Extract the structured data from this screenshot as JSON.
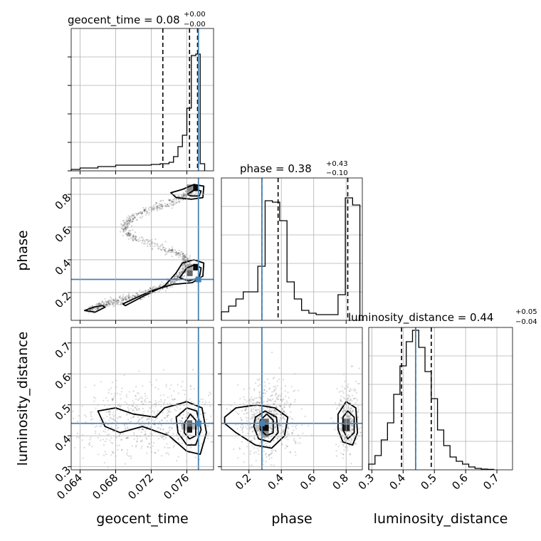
{
  "chart_data": {
    "type": "corner",
    "parameters": [
      "geocent_time",
      "phase",
      "luminosity_distance"
    ],
    "truth_color": "#4682b4",
    "grid": true,
    "marginals": [
      {
        "parameter": "geocent_time",
        "title_text": "geocent_time = 0.08",
        "title_plus": "+0.00",
        "title_minus": "−0.00",
        "quantiles": [
          0.0733,
          0.0763,
          0.0772
        ],
        "truth": 0.0773,
        "xlim": [
          0.063,
          0.079
        ],
        "ylim": [
          0,
          1
        ],
        "bin_edges": [
          0.063,
          0.064,
          0.065,
          0.066,
          0.067,
          0.068,
          0.069,
          0.07,
          0.071,
          0.072,
          0.073,
          0.074,
          0.0745,
          0.075,
          0.0755,
          0.076,
          0.0765,
          0.077,
          0.0775,
          0.078
        ],
        "counts": [
          0.01,
          0.02,
          0.02,
          0.03,
          0.03,
          0.04,
          0.04,
          0.04,
          0.04,
          0.045,
          0.05,
          0.06,
          0.1,
          0.17,
          0.25,
          0.44,
          0.81,
          0.82,
          0.05
        ],
        "y_ticks": [
          0.0,
          0.2,
          0.4,
          0.6,
          0.8
        ]
      },
      {
        "parameter": "phase",
        "title_text": "phase = 0.38",
        "title_plus": "+0.43",
        "title_minus": "−0.10",
        "quantiles": [
          0.28,
          0.38,
          0.81
        ],
        "truth": 0.28,
        "xlim": [
          0.03,
          0.9
        ],
        "ylim": [
          0,
          1
        ],
        "bin_edges": [
          0.03,
          0.075,
          0.12,
          0.165,
          0.21,
          0.255,
          0.3,
          0.345,
          0.39,
          0.435,
          0.48,
          0.525,
          0.57,
          0.615,
          0.66,
          0.705,
          0.75,
          0.795,
          0.84,
          0.885
        ],
        "counts": [
          0.06,
          0.1,
          0.15,
          0.2,
          0.2,
          0.38,
          0.84,
          0.83,
          0.7,
          0.27,
          0.15,
          0.07,
          0.05,
          0.04,
          0.04,
          0.04,
          0.18,
          0.86,
          0.81
        ],
        "x_ticks": [
          "0.2",
          "0.4",
          "0.6",
          "0.8"
        ],
        "x_tick_values": [
          0.2,
          0.4,
          0.6,
          0.8
        ]
      },
      {
        "parameter": "luminosity_distance",
        "title_text": "luminosity_distance = 0.44",
        "title_plus": "+0.05",
        "title_minus": "−0.04",
        "quantiles": [
          0.395,
          0.44,
          0.49
        ],
        "truth": 0.44,
        "xlim": [
          0.29,
          0.75
        ],
        "ylim": [
          0,
          1
        ],
        "bin_edges": [
          0.29,
          0.31,
          0.33,
          0.35,
          0.37,
          0.39,
          0.41,
          0.43,
          0.45,
          0.47,
          0.49,
          0.51,
          0.53,
          0.55,
          0.57,
          0.59,
          0.61,
          0.63,
          0.65,
          0.67,
          0.69
        ],
        "counts": [
          0.04,
          0.1,
          0.21,
          0.33,
          0.53,
          0.73,
          0.9,
          0.98,
          0.86,
          0.69,
          0.5,
          0.28,
          0.17,
          0.09,
          0.06,
          0.04,
          0.02,
          0.01,
          0.005,
          0.003
        ],
        "x_ticks": [
          "0.3",
          "0.4",
          "0.5",
          "0.6",
          "0.7"
        ],
        "x_tick_values": [
          0.3,
          0.4,
          0.5,
          0.6,
          0.7
        ]
      }
    ],
    "axes": {
      "geocent_time": {
        "range": [
          0.063,
          0.079
        ],
        "ticks": [
          "0.064",
          "0.068",
          "0.072",
          "0.076"
        ],
        "tick_values": [
          0.064,
          0.068,
          0.072,
          0.076
        ],
        "label": "geocent_time"
      },
      "phase": {
        "range": [
          0.03,
          0.9
        ],
        "ticks": [
          "0.2",
          "0.4",
          "0.6",
          "0.8"
        ],
        "tick_values": [
          0.2,
          0.4,
          0.6,
          0.8
        ],
        "label": "phase"
      },
      "luminosity_distance": {
        "range": [
          0.29,
          0.75
        ],
        "ticks": [
          "0.3",
          "0.4",
          "0.5",
          "0.6",
          "0.7"
        ],
        "tick_values": [
          0.3,
          0.4,
          0.5,
          0.6,
          0.7
        ],
        "label": "luminosity_distance"
      }
    },
    "truths": {
      "geocent_time": 0.0773,
      "phase": 0.28,
      "luminosity_distance": 0.44
    },
    "joint_panels": [
      {
        "x": "geocent_time",
        "y": "phase",
        "density_cells": [
          {
            "x": 0.077,
            "y": 0.84,
            "w": 0.0006,
            "h": 0.04,
            "shade": 0.95
          },
          {
            "x": 0.0763,
            "y": 0.84,
            "w": 0.0007,
            "h": 0.04,
            "shade": 0.45
          },
          {
            "x": 0.077,
            "y": 0.355,
            "w": 0.0006,
            "h": 0.04,
            "shade": 0.95
          },
          {
            "x": 0.0763,
            "y": 0.32,
            "w": 0.0007,
            "h": 0.04,
            "shade": 0.6
          },
          {
            "x": 0.0763,
            "y": 0.355,
            "w": 0.0007,
            "h": 0.04,
            "shade": 0.35
          }
        ],
        "contours": [
          [
            [
              0.0742,
              0.81
            ],
            [
              0.0755,
              0.83
            ],
            [
              0.0768,
              0.86
            ],
            [
              0.0779,
              0.85
            ],
            [
              0.0778,
              0.78
            ],
            [
              0.0765,
              0.77
            ],
            [
              0.0748,
              0.78
            ],
            [
              0.0742,
              0.81
            ]
          ],
          [
            [
              0.076,
              0.8
            ],
            [
              0.077,
              0.83
            ],
            [
              0.0776,
              0.82
            ],
            [
              0.0774,
              0.79
            ],
            [
              0.0765,
              0.79
            ],
            [
              0.076,
              0.8
            ]
          ],
          [
            [
              0.0691,
              0.12
            ],
            [
              0.0712,
              0.18
            ],
            [
              0.0735,
              0.24
            ],
            [
              0.0748,
              0.32
            ],
            [
              0.0755,
              0.38
            ],
            [
              0.0768,
              0.4
            ],
            [
              0.0779,
              0.38
            ],
            [
              0.0778,
              0.3
            ],
            [
              0.0766,
              0.26
            ],
            [
              0.0745,
              0.25
            ],
            [
              0.072,
              0.21
            ],
            [
              0.07,
              0.16
            ],
            [
              0.0688,
              0.13
            ],
            [
              0.0691,
              0.12
            ]
          ],
          [
            [
              0.0752,
              0.29
            ],
            [
              0.076,
              0.35
            ],
            [
              0.0769,
              0.37
            ],
            [
              0.0776,
              0.35
            ],
            [
              0.0774,
              0.29
            ],
            [
              0.0762,
              0.27
            ],
            [
              0.0752,
              0.29
            ]
          ],
          [
            [
              0.0645,
              0.09
            ],
            [
              0.0655,
              0.11
            ],
            [
              0.0665,
              0.12
            ],
            [
              0.0668,
              0.11
            ],
            [
              0.0657,
              0.08
            ],
            [
              0.0645,
              0.09
            ]
          ]
        ],
        "scatter_path": [
          [
            0.065,
            0.09
          ],
          [
            0.067,
            0.13
          ],
          [
            0.069,
            0.16
          ],
          [
            0.071,
            0.19
          ],
          [
            0.073,
            0.23
          ],
          [
            0.0745,
            0.27
          ],
          [
            0.0755,
            0.32
          ],
          [
            0.076,
            0.38
          ],
          [
            0.0755,
            0.43
          ],
          [
            0.073,
            0.48
          ],
          [
            0.07,
            0.53
          ],
          [
            0.0688,
            0.6
          ],
          [
            0.07,
            0.66
          ],
          [
            0.0725,
            0.72
          ],
          [
            0.0745,
            0.76
          ],
          [
            0.076,
            0.8
          ],
          [
            0.077,
            0.84
          ]
        ]
      },
      {
        "x": "geocent_time",
        "y": "luminosity_distance",
        "density_cells": [
          {
            "x": 0.0763,
            "y": 0.42,
            "w": 0.0006,
            "h": 0.02,
            "shade": 0.9
          },
          {
            "x": 0.0763,
            "y": 0.44,
            "w": 0.0006,
            "h": 0.02,
            "shade": 0.6
          },
          {
            "x": 0.0757,
            "y": 0.43,
            "w": 0.0006,
            "h": 0.02,
            "shade": 0.3
          },
          {
            "x": 0.0769,
            "y": 0.43,
            "w": 0.0006,
            "h": 0.02,
            "shade": 0.3
          }
        ],
        "contours": [
          [
            [
              0.066,
              0.48
            ],
            [
              0.068,
              0.49
            ],
            [
              0.07,
              0.47
            ],
            [
              0.0725,
              0.46
            ],
            [
              0.0735,
              0.49
            ],
            [
              0.076,
              0.51
            ],
            [
              0.0777,
              0.49
            ],
            [
              0.0782,
              0.41
            ],
            [
              0.0775,
              0.34
            ],
            [
              0.076,
              0.35
            ],
            [
              0.074,
              0.4
            ],
            [
              0.071,
              0.43
            ],
            [
              0.0685,
              0.41
            ],
            [
              0.0668,
              0.43
            ],
            [
              0.066,
              0.48
            ]
          ],
          [
            [
              0.0748,
              0.46
            ],
            [
              0.076,
              0.49
            ],
            [
              0.0771,
              0.48
            ],
            [
              0.0776,
              0.42
            ],
            [
              0.077,
              0.37
            ],
            [
              0.076,
              0.37
            ],
            [
              0.075,
              0.41
            ],
            [
              0.0748,
              0.46
            ]
          ],
          [
            [
              0.0757,
              0.44
            ],
            [
              0.0764,
              0.47
            ],
            [
              0.077,
              0.45
            ],
            [
              0.077,
              0.4
            ],
            [
              0.0763,
              0.39
            ],
            [
              0.0757,
              0.41
            ],
            [
              0.0757,
              0.44
            ]
          ]
        ],
        "scatter_center": [
          0.072,
          0.45
        ],
        "scatter_spread": [
          0.0045,
          0.06
        ]
      },
      {
        "x": "phase",
        "y": "luminosity_distance",
        "density_cells": [
          {
            "x": 0.3,
            "y": 0.425,
            "w": 0.045,
            "h": 0.02,
            "shade": 0.95
          },
          {
            "x": 0.3,
            "y": 0.445,
            "w": 0.045,
            "h": 0.02,
            "shade": 0.6
          },
          {
            "x": 0.3,
            "y": 0.405,
            "w": 0.045,
            "h": 0.02,
            "shade": 0.45
          },
          {
            "x": 0.8,
            "y": 0.425,
            "w": 0.045,
            "h": 0.02,
            "shade": 0.85
          },
          {
            "x": 0.8,
            "y": 0.445,
            "w": 0.045,
            "h": 0.02,
            "shade": 0.6
          },
          {
            "x": 0.255,
            "y": 0.425,
            "w": 0.045,
            "h": 0.02,
            "shade": 0.25
          }
        ],
        "contours": [
          [
            [
              0.05,
              0.46
            ],
            [
              0.12,
              0.49
            ],
            [
              0.25,
              0.5
            ],
            [
              0.36,
              0.49
            ],
            [
              0.44,
              0.46
            ],
            [
              0.42,
              0.4
            ],
            [
              0.34,
              0.36
            ],
            [
              0.24,
              0.37
            ],
            [
              0.12,
              0.41
            ],
            [
              0.05,
              0.44
            ],
            [
              0.05,
              0.46
            ]
          ],
          [
            [
              0.24,
              0.46
            ],
            [
              0.3,
              0.48
            ],
            [
              0.37,
              0.46
            ],
            [
              0.38,
              0.41
            ],
            [
              0.33,
              0.38
            ],
            [
              0.26,
              0.39
            ],
            [
              0.23,
              0.43
            ],
            [
              0.24,
              0.46
            ]
          ],
          [
            [
              0.27,
              0.45
            ],
            [
              0.31,
              0.47
            ],
            [
              0.35,
              0.45
            ],
            [
              0.35,
              0.41
            ],
            [
              0.31,
              0.4
            ],
            [
              0.27,
              0.42
            ],
            [
              0.27,
              0.45
            ]
          ],
          [
            [
              0.75,
              0.47
            ],
            [
              0.8,
              0.51
            ],
            [
              0.86,
              0.49
            ],
            [
              0.87,
              0.41
            ],
            [
              0.84,
              0.37
            ],
            [
              0.78,
              0.38
            ],
            [
              0.75,
              0.42
            ],
            [
              0.75,
              0.47
            ]
          ],
          [
            [
              0.78,
              0.46
            ],
            [
              0.81,
              0.48
            ],
            [
              0.85,
              0.46
            ],
            [
              0.85,
              0.41
            ],
            [
              0.81,
              0.39
            ],
            [
              0.78,
              0.42
            ],
            [
              0.78,
              0.46
            ]
          ]
        ],
        "scatter_center": [
          0.32,
          0.45
        ],
        "scatter_spread": [
          0.09,
          0.06
        ],
        "scatter_center_2": [
          0.81,
          0.45
        ],
        "scatter_spread_2": [
          0.035,
          0.06
        ]
      }
    ]
  }
}
